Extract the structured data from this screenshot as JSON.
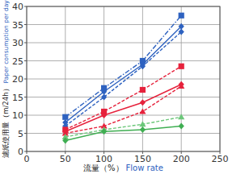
{
  "chart_data": {
    "type": "line",
    "x_label": "流量（%）",
    "x_label_en": "Flow rate",
    "y_label": "濾紙使用量（m/24h）",
    "y_label_en": "Paper consumption per day",
    "x": [
      50,
      100,
      150,
      200
    ],
    "xlim": [
      0,
      250
    ],
    "xticks": [
      0,
      50,
      100,
      150,
      200,
      250
    ],
    "ylim": [
      0,
      40
    ],
    "yticks": [
      0,
      5,
      10,
      15,
      20,
      25,
      30,
      35,
      40
    ],
    "grid": true,
    "series": [
      {
        "color": "#2e62c0",
        "marker": "square",
        "line_style": "dashdot",
        "values": [
          9.5,
          17.5,
          25,
          37.5
        ]
      },
      {
        "color": "#2e62c0",
        "marker": "diamond",
        "line_style": "solid",
        "values": [
          8,
          16.5,
          24,
          34.5
        ]
      },
      {
        "color": "#2e62c0",
        "marker": "diamond",
        "line_style": "dashed",
        "values": [
          7,
          15,
          23.5,
          33
        ]
      },
      {
        "color": "#e6223c",
        "marker": "square",
        "line_style": "dashed",
        "values": [
          6,
          11,
          17,
          23.5
        ]
      },
      {
        "color": "#e6223c",
        "marker": "diamond",
        "line_style": "solid",
        "values": [
          5.5,
          10,
          13.5,
          18.5
        ]
      },
      {
        "color": "#e6223c",
        "marker": "triangle",
        "line_style": "dashed",
        "values": [
          5,
          7,
          11,
          18
        ]
      },
      {
        "color": "#6cc77a",
        "marker": "triangle",
        "line_style": "dashed",
        "values": [
          4,
          6,
          7.5,
          9.5
        ]
      },
      {
        "color": "#3fae52",
        "marker": "diamond",
        "line_style": "solid",
        "values": [
          3,
          5.5,
          6,
          7
        ]
      }
    ]
  }
}
